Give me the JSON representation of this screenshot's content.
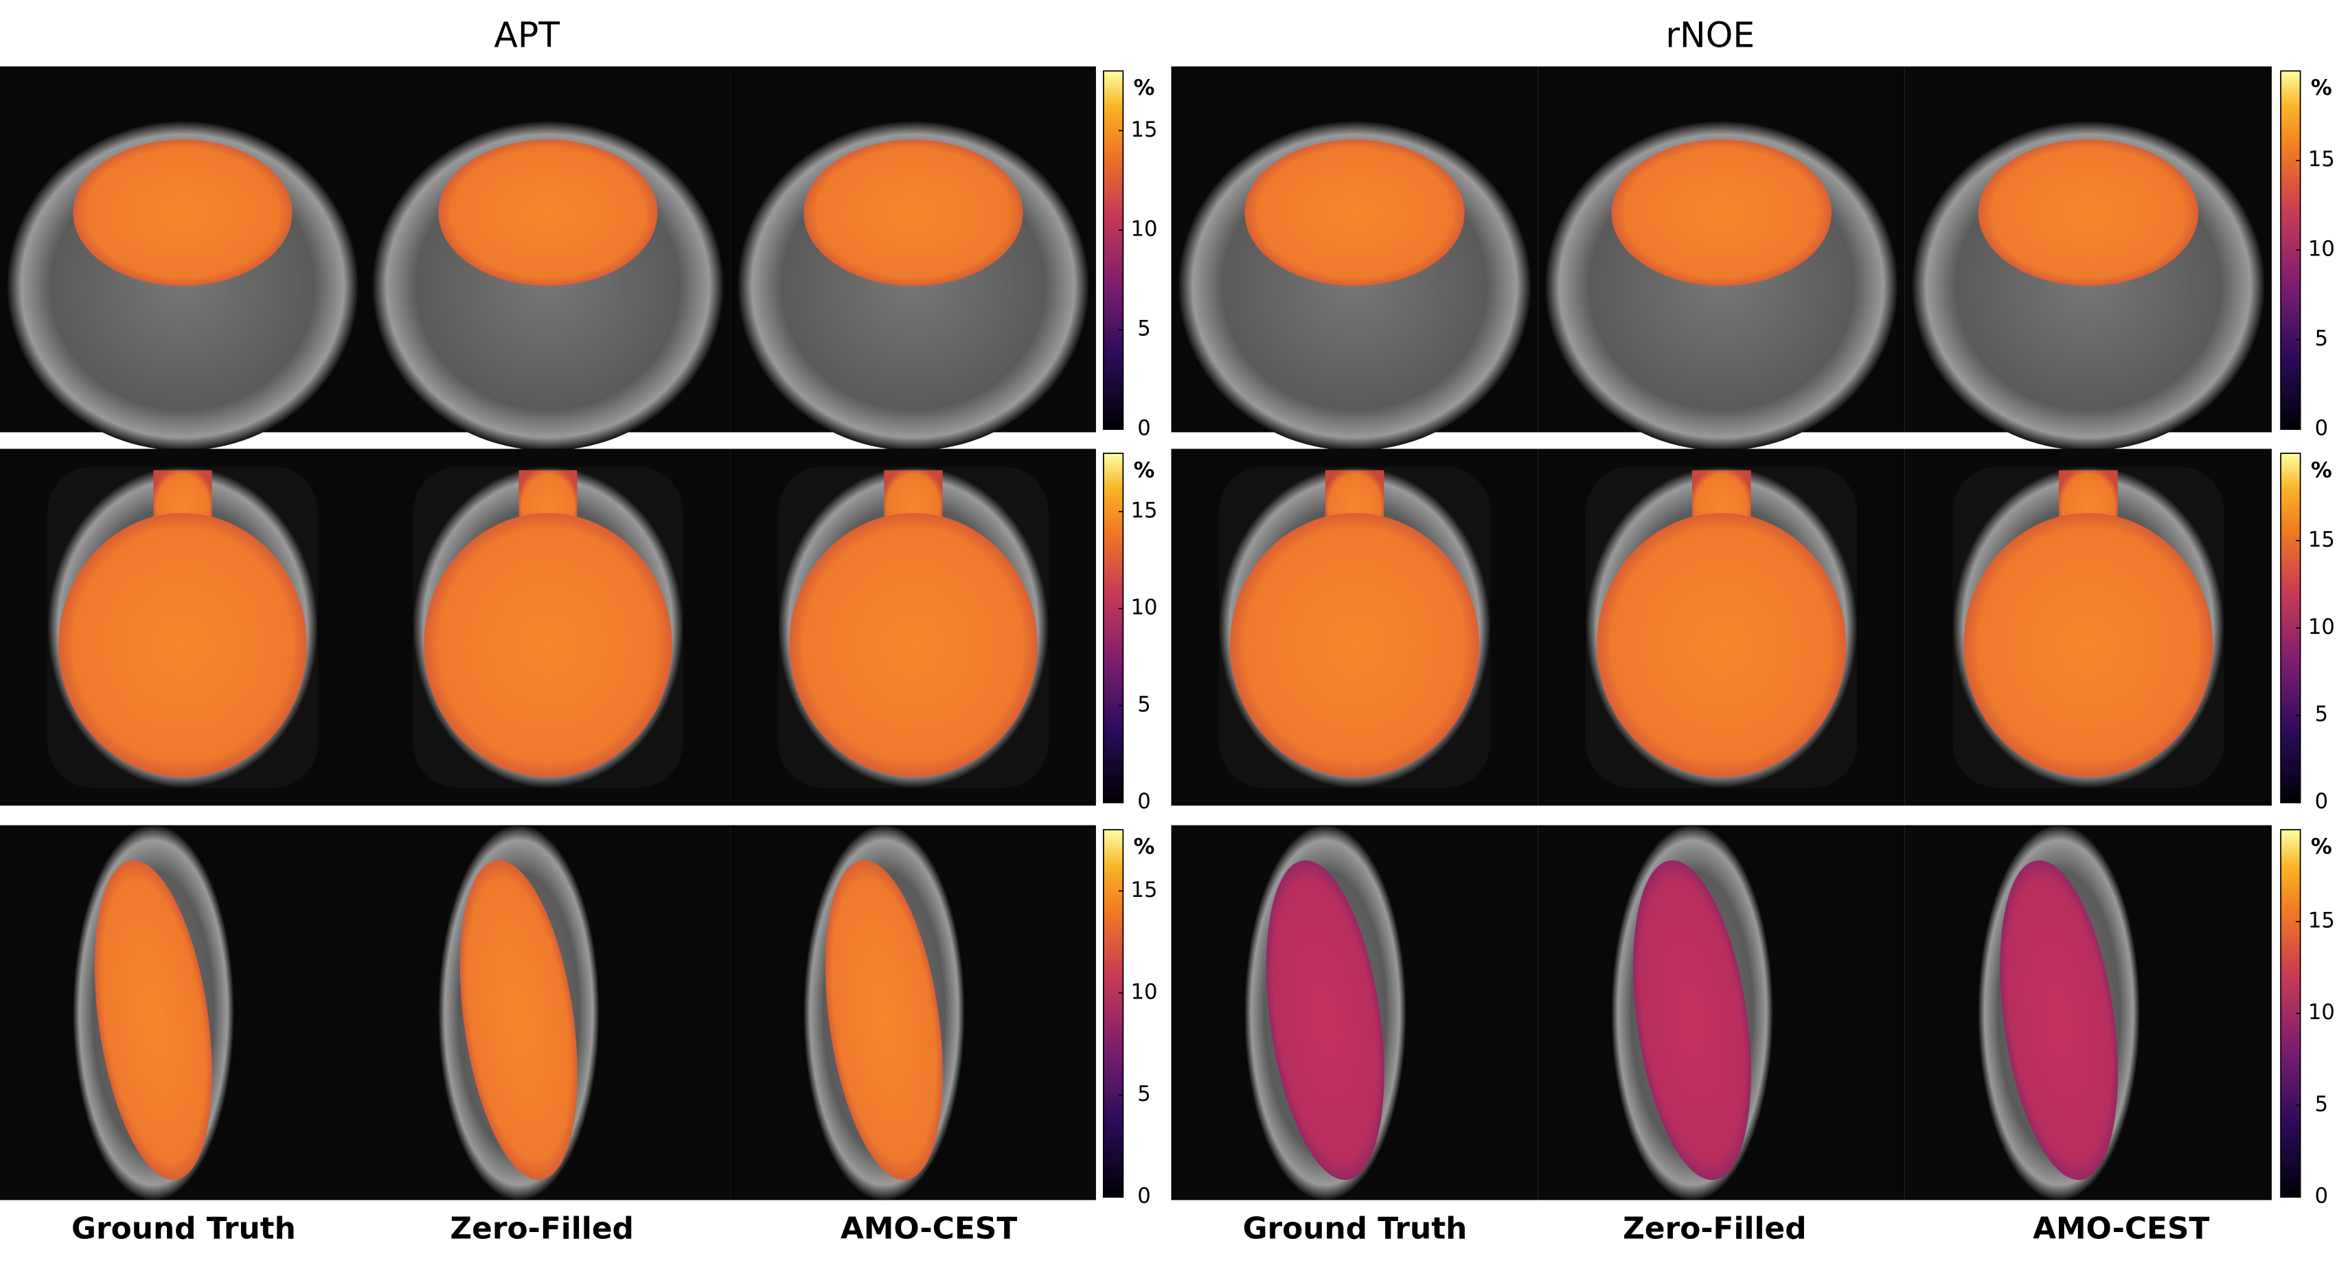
{
  "figure": {
    "panels": [
      {
        "title": "APT",
        "column_labels": [
          "Ground Truth",
          "Zero-Filled",
          "AMO-CEST"
        ],
        "colorbars": [
          {
            "unit": "%",
            "lim": [
              0,
              18
            ],
            "ticks": [
              0,
              5,
              10,
              15
            ]
          },
          {
            "unit": "%",
            "lim": [
              0,
              18
            ],
            "ticks": [
              0,
              5,
              10,
              15
            ]
          },
          {
            "unit": "%",
            "lim": [
              0,
              18
            ],
            "ticks": [
              0,
              5,
              10,
              15
            ]
          }
        ]
      },
      {
        "title": "rNOE",
        "column_labels": [
          "Ground Truth",
          "Zero-Filled",
          "AMO-CEST"
        ],
        "colorbars": [
          {
            "unit": "%",
            "lim": [
              0,
              20
            ],
            "ticks": [
              0,
              5,
              10,
              15
            ]
          },
          {
            "unit": "%",
            "lim": [
              0,
              20
            ],
            "ticks": [
              0,
              5,
              10,
              15
            ]
          },
          {
            "unit": "%",
            "lim": [
              0,
              20
            ],
            "ticks": [
              0,
              5,
              10,
              15
            ]
          }
        ]
      }
    ]
  }
}
